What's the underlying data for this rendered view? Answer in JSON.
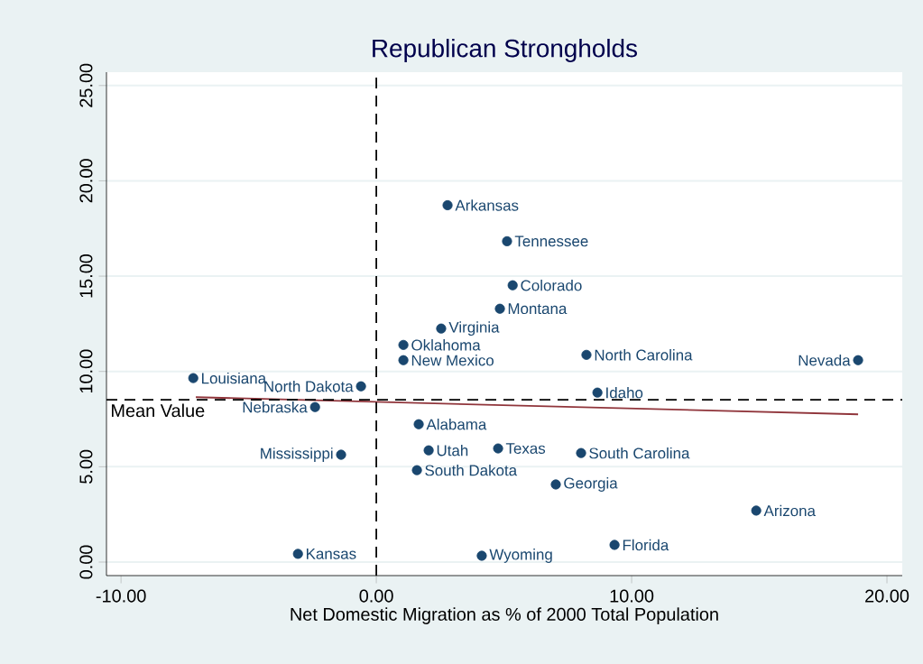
{
  "chart_data": {
    "type": "scatter",
    "title": "Republican Strongholds",
    "xlabel": "Net Domestic Migration as % of 2000 Total Population",
    "xlim": [
      -10.57,
      20.6
    ],
    "ylim": [
      -0.71,
      25.7
    ],
    "xticks": [
      {
        "value": -10,
        "label": "-10.00"
      },
      {
        "value": 0,
        "label": "0.00"
      },
      {
        "value": 10,
        "label": "10.00"
      },
      {
        "value": 20,
        "label": "20.00"
      }
    ],
    "yticks": [
      {
        "value": 0,
        "label": "0.00"
      },
      {
        "value": 5,
        "label": "5.00"
      },
      {
        "value": 10,
        "label": "10.00"
      },
      {
        "value": 15,
        "label": "15.00"
      },
      {
        "value": 20,
        "label": "20.00"
      },
      {
        "value": 25,
        "label": "25.00"
      }
    ],
    "grid": "y",
    "marker": "circle",
    "series": [
      {
        "color": "#1a476f",
        "x": [
          2.79,
          5.12,
          5.34,
          4.84,
          2.54,
          1.06,
          1.06,
          8.23,
          18.87,
          -7.17,
          -0.6,
          8.66,
          -2.4,
          1.66,
          -1.38,
          2.05,
          4.77,
          8.02,
          1.59,
          7.03,
          14.88,
          9.33,
          -3.07,
          4.13
        ],
        "values": [
          18.72,
          16.83,
          14.52,
          13.29,
          12.25,
          11.39,
          10.59,
          10.87,
          10.59,
          9.65,
          9.22,
          8.89,
          8.13,
          7.23,
          5.63,
          5.86,
          5.96,
          5.72,
          4.82,
          4.07,
          2.7,
          0.9,
          0.43,
          0.33
        ]
      },
      {
        "type": "line",
        "color": "#90353b",
        "marker": "none",
        "x": [
          -7.07,
          18.87
        ],
        "values": [
          8.65,
          7.75
        ]
      }
    ],
    "ref_lines": [
      {
        "axis": "y",
        "value": 8.51,
        "label": "Mean Value",
        "line_style": "dashed",
        "color": "#000000"
      },
      {
        "axis": "x",
        "value": 0,
        "line_style": "dashed",
        "color": "#000000"
      }
    ],
    "annotations": [
      {
        "text": "Arkansas",
        "x": 2.79,
        "y": 18.72
      },
      {
        "text": "Tennessee",
        "x": 5.12,
        "y": 16.83
      },
      {
        "text": "Colorado",
        "x": 5.34,
        "y": 14.52
      },
      {
        "text": "Montana",
        "x": 4.84,
        "y": 13.29
      },
      {
        "text": "Virginia",
        "x": 2.54,
        "y": 12.25
      },
      {
        "text": "Oklahoma",
        "x": 1.06,
        "y": 11.39
      },
      {
        "text": "New Mexico",
        "x": 1.06,
        "y": 10.59
      },
      {
        "text": "North Carolina",
        "x": 8.23,
        "y": 10.87
      },
      {
        "text": "Nevada",
        "x": 18.87,
        "y": 10.59
      },
      {
        "text": "Louisiana",
        "x": -7.17,
        "y": 9.65
      },
      {
        "text": "North Dakota",
        "x": -0.6,
        "y": 9.22
      },
      {
        "text": "Idaho",
        "x": 8.66,
        "y": 8.89
      },
      {
        "text": "Nebraska",
        "x": -2.4,
        "y": 8.13
      },
      {
        "text": "Alabama",
        "x": 1.66,
        "y": 7.23
      },
      {
        "text": "Mississippi",
        "x": -1.38,
        "y": 5.63
      },
      {
        "text": "Utah",
        "x": 2.05,
        "y": 5.86
      },
      {
        "text": "Texas",
        "x": 4.77,
        "y": 5.96
      },
      {
        "text": "South Carolina",
        "x": 8.02,
        "y": 5.72
      },
      {
        "text": "South Dakota",
        "x": 1.59,
        "y": 4.82
      },
      {
        "text": "Georgia",
        "x": 7.03,
        "y": 4.07
      },
      {
        "text": "Arizona",
        "x": 14.88,
        "y": 2.7
      },
      {
        "text": "Florida",
        "x": 9.33,
        "y": 0.9
      },
      {
        "text": "Kansas",
        "x": -3.07,
        "y": 0.43
      },
      {
        "text": "Wyoming",
        "x": 4.13,
        "y": 0.33
      }
    ]
  }
}
